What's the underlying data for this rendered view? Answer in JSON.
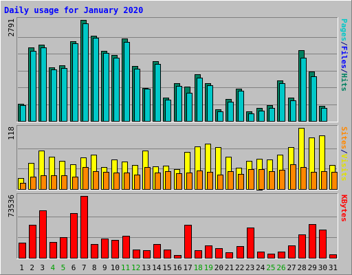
{
  "chart_data": {
    "title": "Daily usage for January 2020",
    "type": "bar",
    "x": [
      "1",
      "2",
      "3",
      "4",
      "5",
      "6",
      "7",
      "8",
      "9",
      "10",
      "11",
      "12",
      "13",
      "14",
      "15",
      "16",
      "17",
      "18",
      "19",
      "20",
      "21",
      "22",
      "23",
      "24",
      "25",
      "26",
      "27",
      "28",
      "29",
      "30",
      "31"
    ],
    "weekend_days": [
      "4",
      "5",
      "11",
      "12",
      "18",
      "19",
      "25",
      "26"
    ],
    "panels": [
      {
        "id": "top",
        "ymax_label": "2791",
        "ymax": 2791,
        "side_labels": [
          {
            "text": "Pages",
            "color": "#00c8c8"
          },
          {
            "text": "/",
            "color": "#000080"
          },
          {
            "text": "Files",
            "color": "#0000ff"
          },
          {
            "text": "/",
            "color": "#000080"
          },
          {
            "text": "Hits",
            "color": "#008060"
          }
        ],
        "series": [
          {
            "name": "Hits",
            "color": "#008060",
            "values": [
              480,
              2040,
              2110,
              1480,
              1530,
              2200,
              2790,
              2360,
              1930,
              1830,
              2270,
              1510,
              920,
              1660,
              650,
              1040,
              950,
              1290,
              1040,
              330,
              600,
              890,
              270,
              360,
              440,
              1120,
              650,
              1950,
              1360,
              410,
              0
            ]
          },
          {
            "name": "Files",
            "color": "#00c8c8",
            "values": [
              430,
              1930,
              2030,
              1420,
              1470,
              2140,
              2690,
              2300,
              1880,
              1740,
              2190,
              1450,
              890,
              1570,
              580,
              970,
              780,
              1190,
              980,
              260,
              540,
              840,
              200,
              280,
              370,
              1040,
              570,
              1750,
              1230,
              370,
              0
            ]
          }
        ]
      },
      {
        "id": "mid",
        "ymax_label": "118",
        "ymax": 118,
        "side_labels": [
          {
            "text": "Sites",
            "color": "#ff8800"
          },
          {
            "text": "/",
            "color": "#000080"
          },
          {
            "text": "Visits",
            "color": "#e0e000"
          }
        ],
        "series": [
          {
            "name": "Visits",
            "color": "#ffff00",
            "values": [
              21,
              51,
              74,
              62,
              54,
              48,
              61,
              66,
              42,
              57,
              53,
              46,
              74,
              44,
              45,
              38,
              72,
              82,
              88,
              81,
              62,
              41,
              54,
              59,
              57,
              66,
              81,
              118,
              100,
              104,
              47
            ]
          },
          {
            "name": "Sites",
            "color": "#ff8800",
            "values": [
              12,
              24,
              27,
              27,
              26,
              24,
              42,
              34,
              33,
              32,
              32,
              28,
              42,
              32,
              35,
              31,
              32,
              36,
              33,
              28,
              35,
              29,
              38,
              38,
              34,
              37,
              48,
              42,
              33,
              34,
              33
            ]
          }
        ]
      },
      {
        "id": "bot",
        "ymax_label": "73536",
        "ymax": 73536,
        "side_labels": [
          {
            "text": "KBytes",
            "color": "#ff0000"
          }
        ],
        "series": [
          {
            "name": "KBytes",
            "color": "#ff0000",
            "values": [
              18000,
              39500,
              56400,
              18700,
              24700,
              53400,
              73500,
              16400,
              22600,
              21000,
              26300,
              10000,
              9000,
              16400,
              9500,
              3300,
              39000,
              8800,
              15000,
              11400,
              6700,
              14100,
              35800,
              7100,
              4500,
              7100,
              14700,
              27700,
              40000,
              33300,
              3700
            ]
          }
        ]
      }
    ],
    "grid": true
  },
  "colors": {
    "background": "#c0c0c0",
    "panel": "#c0c0c0",
    "title": "#0000ff",
    "axis_text": "#000000",
    "weekend_text": "#00a000",
    "gridline": "#808080"
  }
}
